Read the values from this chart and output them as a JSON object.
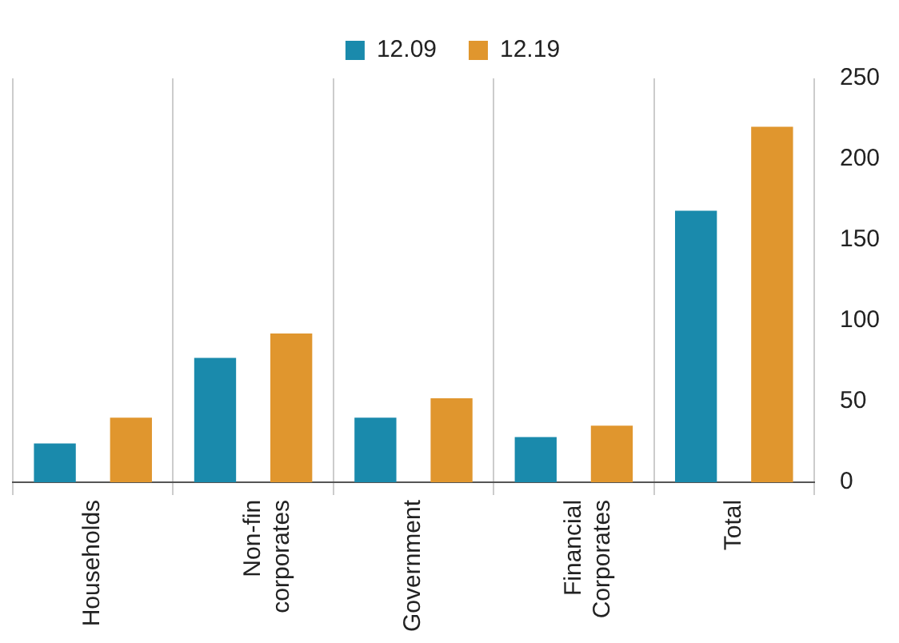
{
  "chart_data": {
    "type": "bar",
    "categories": [
      "Households",
      "Non-fin corporates",
      "Government",
      "Financial Corporates",
      "Total"
    ],
    "series": [
      {
        "name": "12.09",
        "color": "#1a8aac",
        "values": [
          24,
          77,
          40,
          28,
          168
        ]
      },
      {
        "name": "12.19",
        "color": "#e0962e",
        "values": [
          40,
          92,
          52,
          35,
          220
        ]
      }
    ],
    "ylim": [
      0,
      250
    ],
    "yticks": [
      0,
      50,
      100,
      150,
      200,
      250
    ],
    "grid": "x",
    "legend": "top"
  }
}
